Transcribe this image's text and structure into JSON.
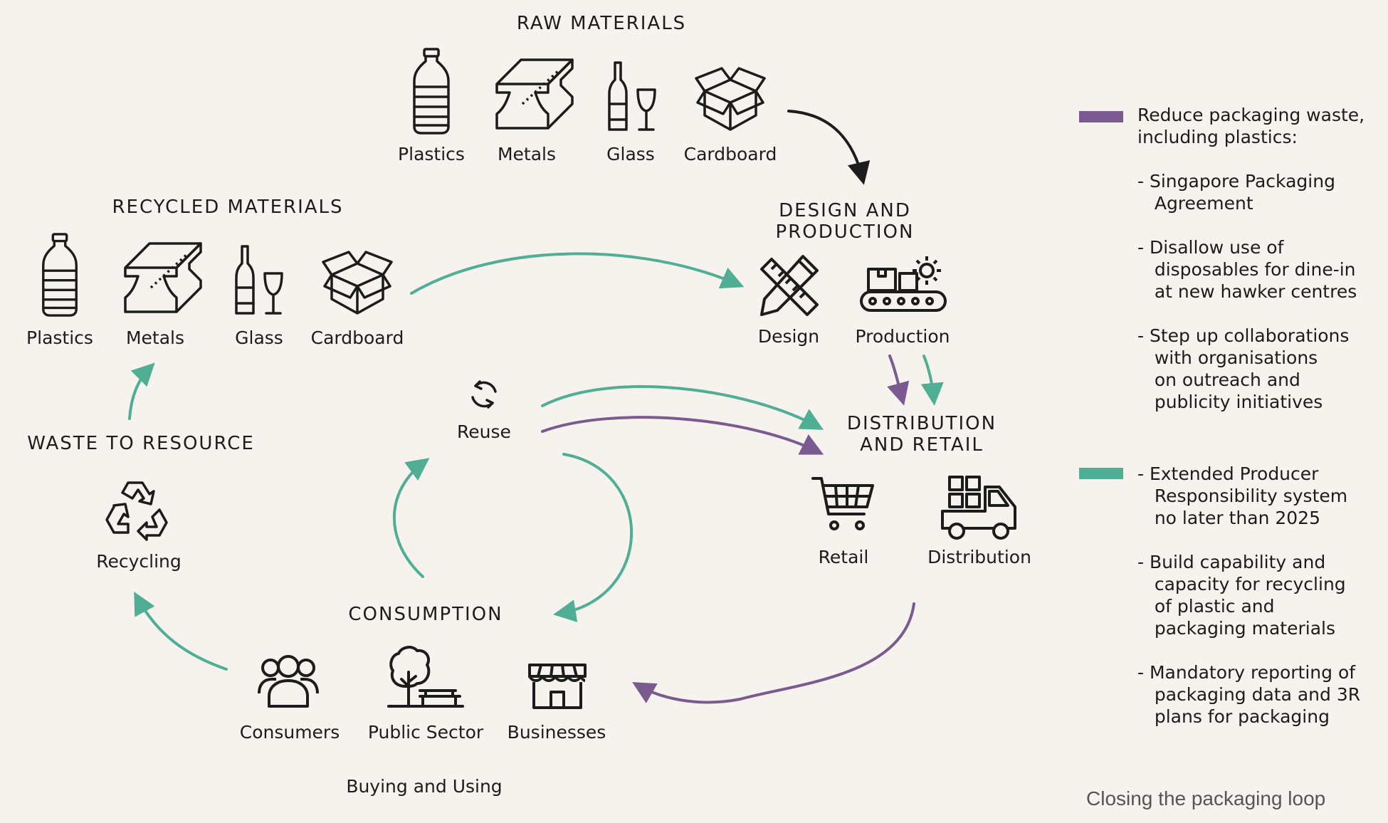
{
  "colors": {
    "purple": "#7b5a8f",
    "green": "#4fae94",
    "ink": "#1c1c1c",
    "background": "#f6f3ee"
  },
  "raw_materials": {
    "heading": "RAW MATERIALS",
    "items": [
      "Plastics",
      "Metals",
      "Glass",
      "Cardboard"
    ]
  },
  "recycled_materials": {
    "heading": "RECYCLED MATERIALS",
    "items": [
      "Plastics",
      "Metals",
      "Glass",
      "Cardboard"
    ]
  },
  "design_production": {
    "heading_line1": "DESIGN AND",
    "heading_line2": "PRODUCTION",
    "items": [
      "Design",
      "Production"
    ]
  },
  "distribution_retail": {
    "heading_line1": "DISTRIBUTION",
    "heading_line2": "AND RETAIL",
    "items": [
      "Retail",
      "Distribution"
    ]
  },
  "waste_to_resource": {
    "heading": "WASTE TO RESOURCE",
    "items": [
      "Recycling"
    ]
  },
  "reuse": {
    "label": "Reuse"
  },
  "consumption": {
    "heading": "CONSUMPTION",
    "items": [
      "Consumers",
      "Public Sector",
      "Businesses"
    ],
    "subtitle": "Buying and Using"
  },
  "legend": {
    "purple_items": [
      "Reduce packaging waste,\nincluding plastics:",
      "- Singapore Packaging\n   Agreement",
      "- Disallow use of\n   disposables for dine-in\n   at new hawker centres",
      "- Step up collaborations\n   with organisations\n   on outreach and\n   publicity initiatives"
    ],
    "green_items": [
      "- Extended Producer\n   Responsibility system\n   no later than 2025",
      "- Build capability and\n   capacity for recycling\n   of plastic and\n   packaging materials",
      "- Mandatory reporting of\n   packaging data and 3R\n   plans for packaging"
    ]
  },
  "caption": "Closing the packaging loop"
}
